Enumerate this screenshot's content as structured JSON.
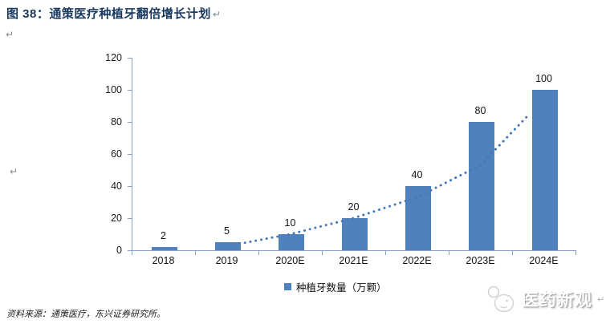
{
  "title": {
    "text": "图 38：通策医疗种植牙翻倍增长计划",
    "return_mark": "↵"
  },
  "marks": {
    "first": "↵",
    "second": "↵"
  },
  "chart_data": {
    "type": "bar",
    "categories": [
      "2018",
      "2019",
      "2020E",
      "2021E",
      "2022E",
      "2023E",
      "2024E"
    ],
    "series": [
      {
        "name": "种植牙数量（万颗）",
        "values": [
          2,
          5,
          10,
          20,
          40,
          80,
          100
        ]
      }
    ],
    "data_labels": [
      "2",
      "5",
      "10",
      "20",
      "40",
      "80",
      "100"
    ],
    "ylim": [
      0,
      120
    ],
    "yticks": [
      0,
      20,
      40,
      60,
      80,
      100,
      120
    ],
    "grid": false,
    "legend": {
      "position": "bottom",
      "label": "种植牙数量（万颗）"
    },
    "bar_color": "#4F81BD",
    "axis_color": "#87A2C2",
    "trendline": {
      "style": "dotted",
      "color": "#4677B6",
      "points": [
        [
          2019.2,
          4
        ],
        [
          2020,
          10
        ],
        [
          2021,
          20
        ],
        [
          2022,
          33
        ],
        [
          2023,
          53
        ],
        [
          2023.75,
          84
        ]
      ]
    }
  },
  "footer": {
    "source": "资料来源：通策医疗，东兴证券研究所。"
  },
  "watermark": {
    "text": "医药新观",
    "return_mark": "↵"
  }
}
